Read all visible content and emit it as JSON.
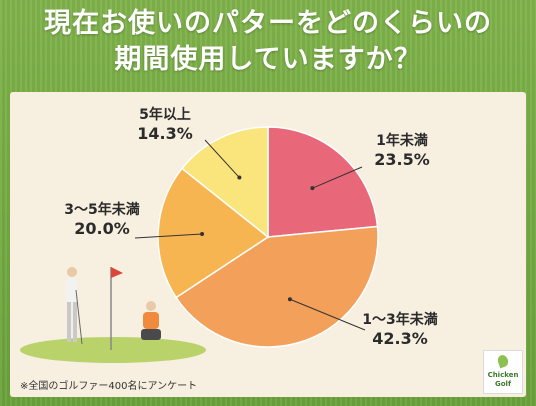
{
  "title": {
    "line1": "現在お使いのパターをどのくらいの",
    "line2": "期間使用していますか？"
  },
  "chart_data": {
    "type": "pie",
    "slices": [
      {
        "name": "1年未満",
        "value": 23.5,
        "label": "23.5%",
        "color": "#e8687a"
      },
      {
        "name": "1～3年未満",
        "value": 42.3,
        "label": "42.3%",
        "color": "#f3a05a"
      },
      {
        "name": "3～5年未満",
        "value": 20.0,
        "label": "20.0%",
        "color": "#f7b551"
      },
      {
        "name": "5年以上",
        "value": 14.3,
        "label": "14.3%",
        "color": "#f9e57c"
      }
    ],
    "start_angle_deg": 0,
    "direction": "clockwise"
  },
  "footnote": "※全国のゴルファー400名にアンケート",
  "logo": {
    "line1": "Chicken",
    "line2": "Golf"
  },
  "colors": {
    "background_green": "#6aa23b",
    "card": "#f7efdf",
    "slice_border": "#ffffff"
  }
}
